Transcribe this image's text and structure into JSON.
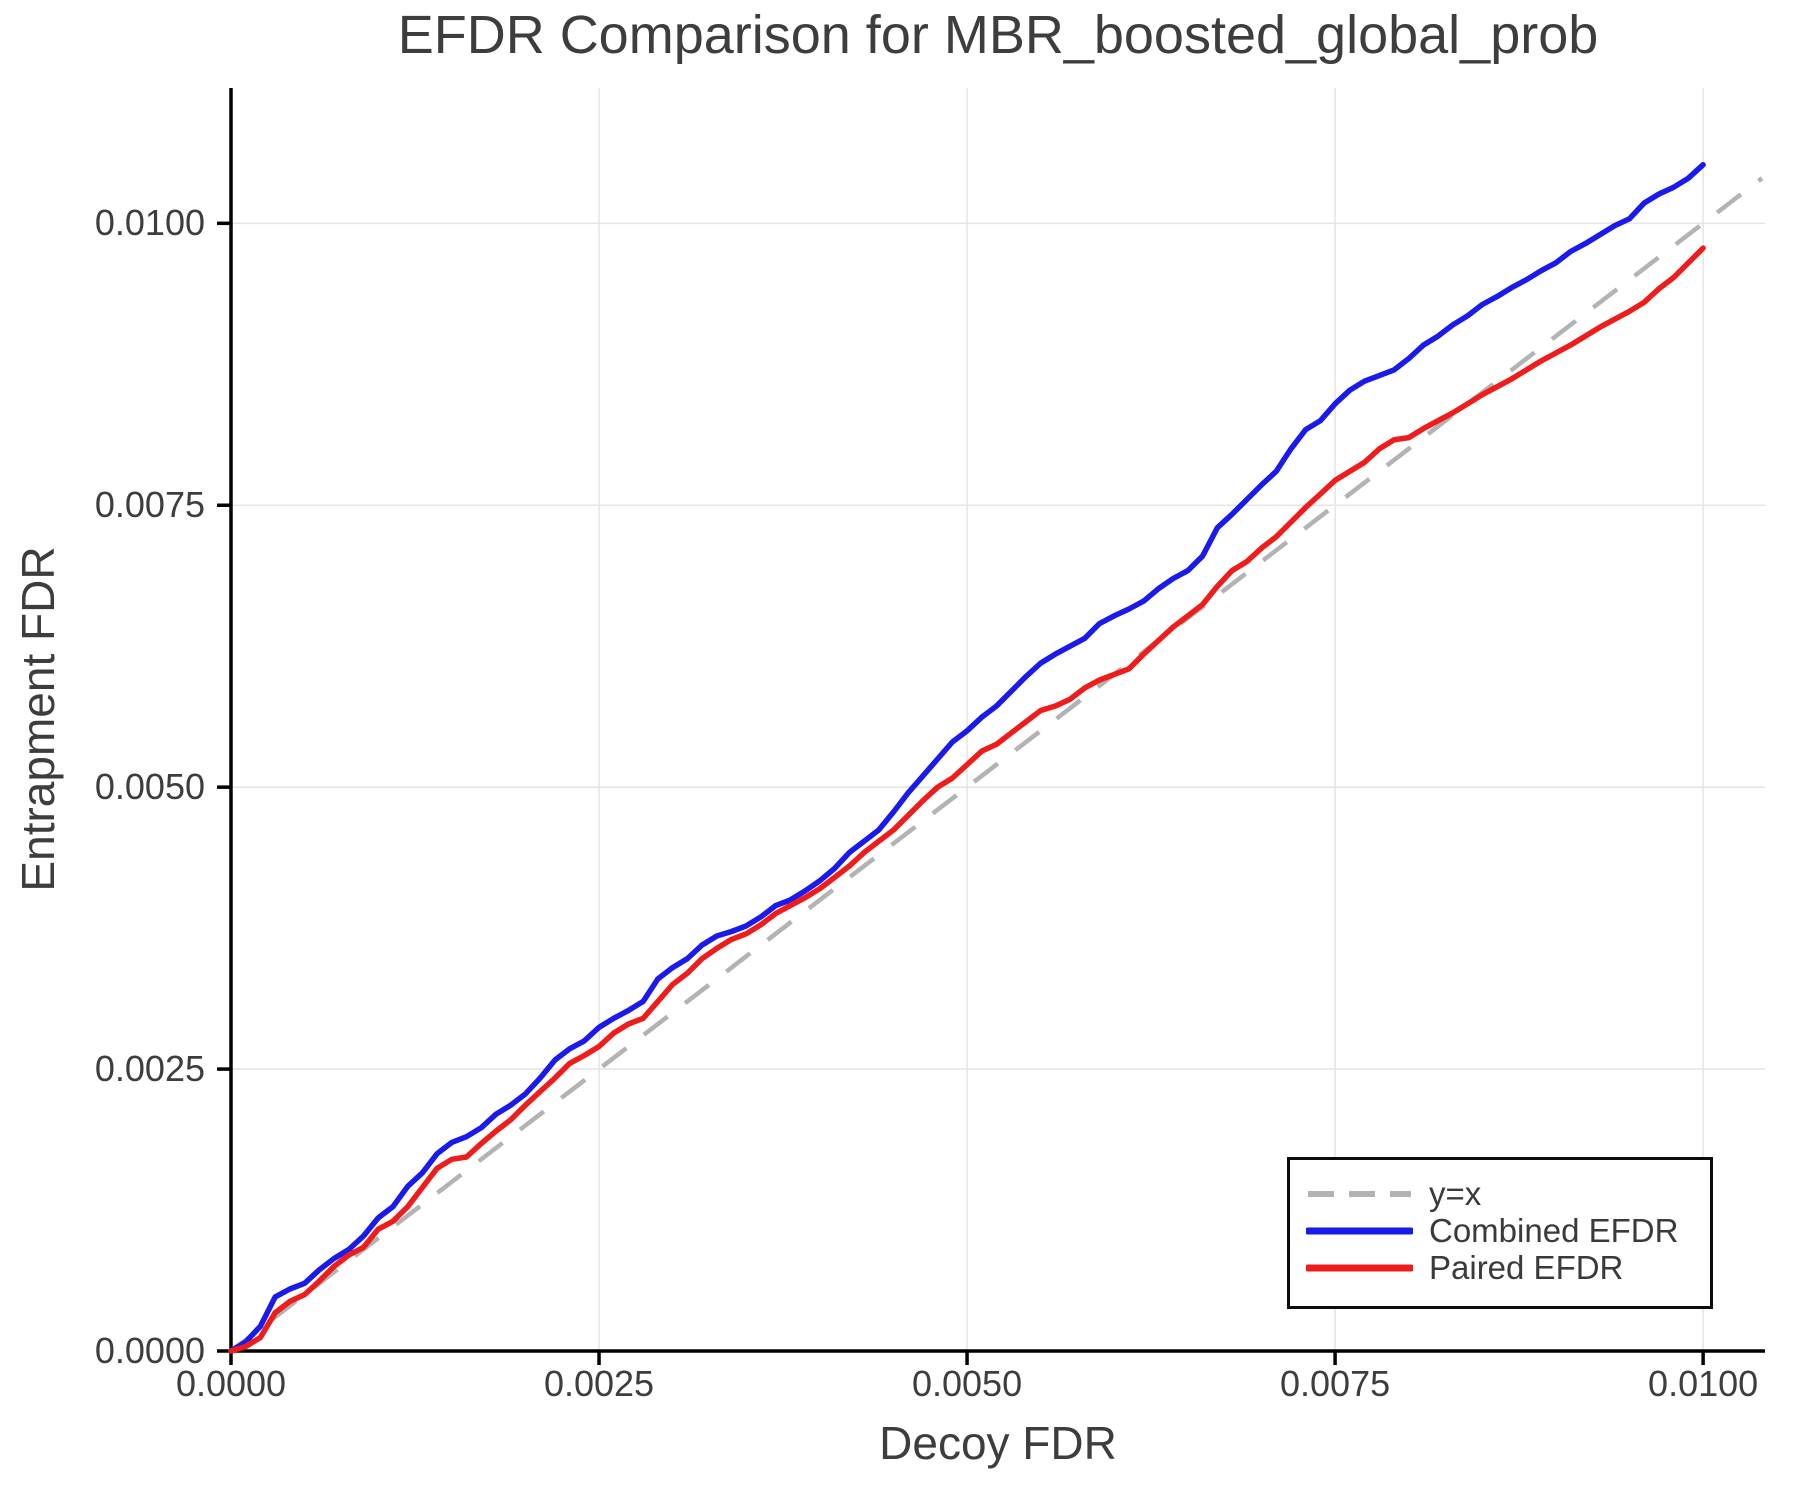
{
  "chart_data": {
    "type": "line",
    "title": "EFDR Comparison for MBR_boosted_global_prob",
    "xlabel": "Decoy FDR",
    "ylabel": "Entrapment FDR",
    "xlim": [
      0.0,
      0.0104
    ],
    "ylim": [
      0.0,
      0.0112
    ],
    "grid": true,
    "legend_position": "bottom-right",
    "grid_color": "#e6e6e6",
    "spine_color": "#000000",
    "text_color": "#3d3d3d",
    "xticks": [
      {
        "value": 0.0,
        "label": "0.0000"
      },
      {
        "value": 0.0025,
        "label": "0.0025"
      },
      {
        "value": 0.005,
        "label": "0.0050"
      },
      {
        "value": 0.0075,
        "label": "0.0075"
      },
      {
        "value": 0.01,
        "label": "0.0100"
      }
    ],
    "yticks": [
      {
        "value": 0.0,
        "label": "0.0000"
      },
      {
        "value": 0.0025,
        "label": "0.0025"
      },
      {
        "value": 0.005,
        "label": "0.0050"
      },
      {
        "value": 0.0075,
        "label": "0.0075"
      },
      {
        "value": 0.01,
        "label": "0.0100"
      }
    ],
    "diagonal": {
      "label": "y=x",
      "style": "dashed",
      "color": "#b3b3b3",
      "x": [
        0.0,
        0.0104
      ],
      "y": [
        0.0,
        0.0104
      ]
    },
    "legend": {
      "entries": [
        {
          "label": "y=x",
          "color": "#b3b3b3",
          "style": "dashed"
        },
        {
          "label": "Combined EFDR",
          "color": "#1a1aeb",
          "style": "solid"
        },
        {
          "label": "Paired EFDR",
          "color": "#ef1c1c",
          "style": "solid"
        }
      ]
    },
    "x": [
      0.0,
      0.0001,
      0.0002,
      0.0003,
      0.0004,
      0.0005,
      0.0006,
      0.0007,
      0.0008,
      0.0009,
      0.001,
      0.0011,
      0.0012,
      0.0013,
      0.0014,
      0.0015,
      0.0016,
      0.0017,
      0.0018,
      0.0019,
      0.002,
      0.0021,
      0.0022,
      0.0023,
      0.0024,
      0.0025,
      0.0026,
      0.0027,
      0.0028,
      0.0029,
      0.003,
      0.0031,
      0.0032,
      0.0033,
      0.0034,
      0.0035,
      0.0036,
      0.0037,
      0.0038,
      0.0039,
      0.004,
      0.0041,
      0.0042,
      0.0043,
      0.0044,
      0.0045,
      0.0046,
      0.0047,
      0.0048,
      0.0049,
      0.005,
      0.0051,
      0.0052,
      0.0053,
      0.0054,
      0.0055,
      0.0056,
      0.0057,
      0.0058,
      0.0059,
      0.006,
      0.0061,
      0.0062,
      0.0063,
      0.0064,
      0.0065,
      0.0066,
      0.0067,
      0.0068,
      0.0069,
      0.007,
      0.0071,
      0.0072,
      0.0073,
      0.0074,
      0.0075,
      0.0076,
      0.0077,
      0.0078,
      0.0079,
      0.008,
      0.0081,
      0.0082,
      0.0083,
      0.0084,
      0.0085,
      0.0086,
      0.0087,
      0.0088,
      0.0089,
      0.009,
      0.0091,
      0.0092,
      0.0093,
      0.0094,
      0.0095,
      0.0096,
      0.0097,
      0.0098,
      0.0099,
      0.01
    ],
    "series": [
      {
        "name": "Combined EFDR",
        "color": "#1a1aeb",
        "y": [
          0.0,
          8e-05,
          0.00022,
          0.00048,
          0.00055,
          0.0006,
          0.00072,
          0.00082,
          0.0009,
          0.00102,
          0.00118,
          0.00128,
          0.00146,
          0.00158,
          0.00175,
          0.00185,
          0.0019,
          0.00198,
          0.0021,
          0.00218,
          0.00228,
          0.00242,
          0.00258,
          0.00268,
          0.00275,
          0.00287,
          0.00295,
          0.00302,
          0.0031,
          0.0033,
          0.0034,
          0.00348,
          0.0036,
          0.00368,
          0.00372,
          0.00377,
          0.00385,
          0.00395,
          0.004,
          0.00408,
          0.00417,
          0.00428,
          0.00442,
          0.00452,
          0.00462,
          0.00478,
          0.00495,
          0.0051,
          0.00525,
          0.0054,
          0.0055,
          0.00562,
          0.00572,
          0.00585,
          0.00598,
          0.0061,
          0.00618,
          0.00625,
          0.00632,
          0.00645,
          0.00652,
          0.00658,
          0.00665,
          0.00676,
          0.00685,
          0.00692,
          0.00705,
          0.0073,
          0.00742,
          0.00755,
          0.00768,
          0.0078,
          0.008,
          0.00817,
          0.00825,
          0.0084,
          0.00852,
          0.0086,
          0.00865,
          0.0087,
          0.0088,
          0.00892,
          0.009,
          0.0091,
          0.00918,
          0.00928,
          0.00935,
          0.00943,
          0.0095,
          0.00958,
          0.00965,
          0.00975,
          0.00982,
          0.0099,
          0.00998,
          0.01004,
          0.01018,
          0.01026,
          0.01032,
          0.0104,
          0.01052
        ]
      },
      {
        "name": "Paired EFDR",
        "color": "#ef1c1c",
        "y": [
          0.0,
          4e-05,
          0.00012,
          0.00034,
          0.00044,
          0.0005,
          0.00062,
          0.00075,
          0.00085,
          0.00092,
          0.00108,
          0.00115,
          0.00128,
          0.00145,
          0.00162,
          0.0017,
          0.00172,
          0.00184,
          0.00195,
          0.00205,
          0.00218,
          0.0023,
          0.00242,
          0.00255,
          0.00262,
          0.0027,
          0.00282,
          0.0029,
          0.00295,
          0.0031,
          0.00325,
          0.00335,
          0.00348,
          0.00357,
          0.00365,
          0.0037,
          0.00378,
          0.00388,
          0.00395,
          0.00402,
          0.0041,
          0.0042,
          0.0043,
          0.00442,
          0.00452,
          0.00462,
          0.00475,
          0.00488,
          0.005,
          0.00508,
          0.0052,
          0.00532,
          0.00538,
          0.00548,
          0.00558,
          0.00568,
          0.00572,
          0.00578,
          0.00588,
          0.00595,
          0.006,
          0.00605,
          0.00618,
          0.0063,
          0.00642,
          0.00652,
          0.00662,
          0.00678,
          0.00692,
          0.007,
          0.00712,
          0.00722,
          0.00735,
          0.00748,
          0.0076,
          0.00772,
          0.0078,
          0.00788,
          0.008,
          0.00808,
          0.0081,
          0.00818,
          0.00825,
          0.00832,
          0.0084,
          0.00848,
          0.00855,
          0.00862,
          0.0087,
          0.00878,
          0.00885,
          0.00892,
          0.009,
          0.00908,
          0.00915,
          0.00922,
          0.0093,
          0.00942,
          0.00952,
          0.00965,
          0.00978
        ]
      }
    ]
  }
}
